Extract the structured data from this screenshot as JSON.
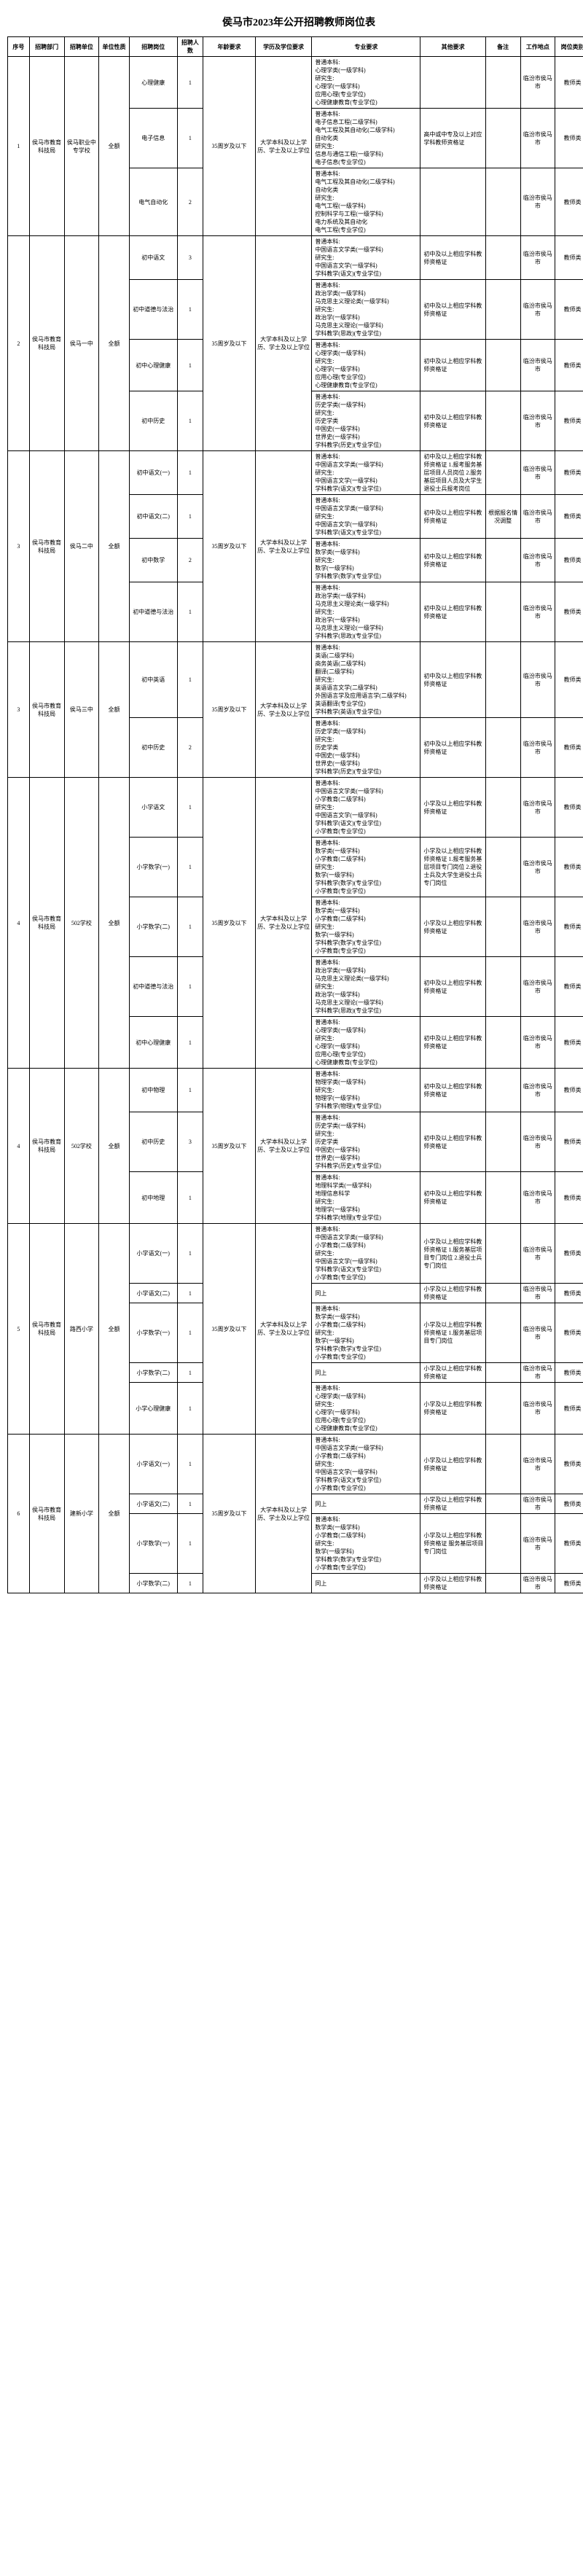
{
  "title": "侯马市2023年公开招聘教师岗位表",
  "headers": [
    "序号",
    "招聘部门",
    "招聘单位",
    "单位性质",
    "招聘岗位",
    "招聘人数",
    "年龄要求",
    "学历及学位要求",
    "专业要求",
    "其他要求",
    "备注",
    "工作地点",
    "岗位类别"
  ],
  "groups": [
    {
      "seq": "1",
      "dept": "侯马市教育科技局",
      "unit": "侯马职业中专学校",
      "nature": "全额",
      "age": "35周岁及以下",
      "edu": "大学本科及以上学历、学士及以上学位",
      "rows": [
        {
          "pos": "心理健康",
          "num": "1",
          "req": "普通本科:\n心理学类(一级学科)\n研究生:\n心理学(一级学科)\n应用心理(专业学位)\n心理健康教育(专业学位)",
          "other": "",
          "note": "",
          "loc": "临汾市侯马市",
          "cat": "教师类"
        },
        {
          "pos": "电子信息",
          "num": "1",
          "req": "普通本科:\n电子信息工程(二级学科)\n电气工程及其自动化(二级学科)\n自动化类\n研究生:\n信息与通信工程(一级学科)\n电子信息(专业学位)",
          "other": "高中或中专及以上对应学科教师资格证",
          "note": "",
          "loc": "临汾市侯马市",
          "cat": "教师类"
        },
        {
          "pos": "电气自动化",
          "num": "2",
          "req": "普通本科:\n电气工程及其自动化(二级学科)\n自动化类\n研究生:\n电气工程(一级学科)\n控制科学与工程(一级学科)\n电力系统及其自动化\n电气工程(专业学位)",
          "other": "",
          "note": "",
          "loc": "临汾市侯马市",
          "cat": "教师类"
        }
      ]
    },
    {
      "seq": "2",
      "dept": "侯马市教育科技局",
      "unit": "侯马一中",
      "nature": "全额",
      "age": "35周岁及以下",
      "edu": "大学本科及以上学历、学士及以上学位",
      "rows": [
        {
          "pos": "初中语文",
          "num": "3",
          "req": "普通本科:\n中国语言文学类(一级学科)\n研究生:\n中国语言文学(一级学科)\n学科教学(语文)(专业学位)",
          "other": "初中及以上相应学科教师资格证",
          "note": "",
          "loc": "临汾市侯马市",
          "cat": "教师类"
        },
        {
          "pos": "初中道德与法治",
          "num": "1",
          "req": "普通本科:\n政治学类(一级学科)\n马克思主义理论类(一级学科)\n研究生:\n政治学(一级学科)\n马克思主义理论(一级学科)\n学科教学(思政)(专业学位)",
          "other": "初中及以上相应学科教师资格证",
          "note": "",
          "loc": "临汾市侯马市",
          "cat": "教师类"
        },
        {
          "pos": "初中心理健康",
          "num": "1",
          "req": "普通本科:\n心理学类(一级学科)\n研究生:\n心理学(一级学科)\n应用心理(专业学位)\n心理健康教育(专业学位)",
          "other": "初中及以上相应学科教师资格证",
          "note": "",
          "loc": "临汾市侯马市",
          "cat": "教师类"
        },
        {
          "pos": "初中历史",
          "num": "1",
          "req": "普通本科:\n历史学类(一级学科)\n研究生:\n历史学类\n中国史(一级学科)\n世界史(一级学科)\n学科教学(历史)(专业学位)",
          "other": "初中及以上相应学科教师资格证",
          "note": "",
          "loc": "临汾市侯马市",
          "cat": "教师类"
        }
      ]
    },
    {
      "seq": "3",
      "dept": "侯马市教育科技局",
      "unit": "侯马二中",
      "nature": "全额",
      "age": "35周岁及以下",
      "edu": "大学本科及以上学历、学士及以上学位",
      "rows": [
        {
          "pos": "初中语文(一)",
          "num": "1",
          "req": "普通本科:\n中国语言文学类(一级学科)\n研究生:\n中国语言文学(一级学科)\n学科教学(语文)(专业学位)",
          "other": "初中及以上相应学科教师资格证 1.报考服务基层项目人员岗位 2.服务基层项目人员及大学生退役士兵报考岗位",
          "note": "",
          "loc": "临汾市侯马市",
          "cat": "教师类"
        },
        {
          "pos": "初中语文(二)",
          "num": "1",
          "req": "普通本科:\n中国语言文学类(一级学科)\n研究生:\n中国语言文学(一级学科)\n学科教学(语文)(专业学位)",
          "other": "初中及以上相应学科教师资格证",
          "note": "根据报名情况调整",
          "loc": "临汾市侯马市",
          "cat": "教师类"
        },
        {
          "pos": "初中数学",
          "num": "2",
          "req": "普通本科:\n数学类(一级学科)\n研究生:\n数学(一级学科)\n学科教学(数学)(专业学位)",
          "other": "初中及以上相应学科教师资格证",
          "note": "",
          "loc": "临汾市侯马市",
          "cat": "教师类"
        },
        {
          "pos": "初中道德与法治",
          "num": "1",
          "req": "普通本科:\n政治学类(一级学科)\n马克思主义理论类(一级学科)\n研究生:\n政治学(一级学科)\n马克思主义理论(一级学科)\n学科教学(思政)(专业学位)",
          "other": "初中及以上相应学科教师资格证",
          "note": "",
          "loc": "临汾市侯马市",
          "cat": "教师类"
        }
      ]
    },
    {
      "seq": "3",
      "dept": "侯马市教育科技局",
      "unit": "侯马三中",
      "nature": "全额",
      "age": "35周岁及以下",
      "edu": "大学本科及以上学历、学士及以上学位",
      "rows": [
        {
          "pos": "初中英语",
          "num": "1",
          "req": "普通本科:\n英语(二级学科)\n商务英语(二级学科)\n翻译(二级学科)\n研究生:\n英语语言文学(二级学科)\n外国语言学及应用语言学(二级学科)\n英语翻译(专业学位)\n学科教学(英语)(专业学位)",
          "other": "初中及以上相应学科教师资格证",
          "note": "",
          "loc": "临汾市侯马市",
          "cat": "教师类"
        },
        {
          "pos": "初中历史",
          "num": "2",
          "req": "普通本科:\n历史学类(一级学科)\n研究生:\n历史学类\n中国史(一级学科)\n世界史(一级学科)\n学科教学(历史)(专业学位)",
          "other": "初中及以上相应学科教师资格证",
          "note": "",
          "loc": "临汾市侯马市",
          "cat": "教师类"
        }
      ]
    },
    {
      "seq": "4",
      "dept": "侯马市教育科技局",
      "unit": "502学校",
      "nature": "全额",
      "age": "35周岁及以下",
      "edu": "大学本科及以上学历、学士及以上学位",
      "rows": [
        {
          "pos": "小学语文",
          "num": "1",
          "req": "普通本科:\n中国语言文学类(一级学科)\n小学教育(二级学科)\n研究生:\n中国语言文学(一级学科)\n学科教学(语文)(专业学位)\n小学教育(专业学位)",
          "other": "小学及以上相应学科教师资格证",
          "note": "",
          "loc": "临汾市侯马市",
          "cat": "教师类"
        },
        {
          "pos": "小学数学(一)",
          "num": "1",
          "req": "普通本科:\n数学类(一级学科)\n小学教育(二级学科)\n研究生:\n数学(一级学科)\n学科教学(数学)(专业学位)\n小学教育(专业学位)",
          "other": "小学及以上相应学科教师资格证 1.报考服务基层项目专门岗位 2.退役士兵及大学生退役士兵专门岗位",
          "note": "",
          "loc": "临汾市侯马市",
          "cat": "教师类"
        },
        {
          "pos": "小学数学(二)",
          "num": "1",
          "req": "普通本科:\n数学类(一级学科)\n小学教育(二级学科)\n研究生:\n数学(一级学科)\n学科教学(数学)(专业学位)\n小学教育(专业学位)",
          "other": "小学及以上相应学科教师资格证",
          "note": "",
          "loc": "临汾市侯马市",
          "cat": "教师类"
        },
        {
          "pos": "初中道德与法治",
          "num": "1",
          "req": "普通本科:\n政治学类(一级学科)\n马克思主义理论类(一级学科)\n研究生:\n政治学(一级学科)\n马克思主义理论(一级学科)\n学科教学(思政)(专业学位)",
          "other": "初中及以上相应学科教师资格证",
          "note": "",
          "loc": "临汾市侯马市",
          "cat": "教师类"
        },
        {
          "pos": "初中心理健康",
          "num": "1",
          "req": "普通本科:\n心理学类(一级学科)\n研究生:\n心理学(一级学科)\n应用心理(专业学位)\n心理健康教育(专业学位)",
          "other": "初中及以上相应学科教师资格证",
          "note": "",
          "loc": "临汾市侯马市",
          "cat": "教师类"
        }
      ]
    },
    {
      "seq": "4",
      "dept": "侯马市教育科技局",
      "unit": "502学校",
      "nature": "全额",
      "age": "35周岁及以下",
      "edu": "大学本科及以上学历、学士及以上学位",
      "rows": [
        {
          "pos": "初中物理",
          "num": "1",
          "req": "普通本科:\n物理学类(一级学科)\n研究生:\n物理学(一级学科)\n学科教学(物理)(专业学位)",
          "other": "初中及以上相应学科教师资格证",
          "note": "",
          "loc": "临汾市侯马市",
          "cat": "教师类"
        },
        {
          "pos": "初中历史",
          "num": "3",
          "req": "普通本科:\n历史学类(一级学科)\n研究生:\n历史学类\n中国史(一级学科)\n世界史(一级学科)\n学科教学(历史)(专业学位)",
          "other": "初中及以上相应学科教师资格证",
          "note": "",
          "loc": "临汾市侯马市",
          "cat": "教师类"
        },
        {
          "pos": "初中地理",
          "num": "1",
          "req": "普通本科:\n地理科学类(一级学科)\n地理信息科学\n研究生:\n地理学(一级学科)\n学科教学(地理)(专业学位)",
          "other": "初中及以上相应学科教师资格证",
          "note": "",
          "loc": "临汾市侯马市",
          "cat": "教师类"
        }
      ]
    },
    {
      "seq": "5",
      "dept": "侯马市教育科技局",
      "unit": "路西小学",
      "nature": "全额",
      "age": "35周岁及以下",
      "edu": "大学本科及以上学历、学士及以上学位",
      "rows": [
        {
          "pos": "小学语文(一)",
          "num": "1",
          "req": "普通本科:\n中国语言文学类(一级学科)\n小学教育(二级学科)\n研究生:\n中国语言文学(一级学科)\n学科教学(语文)(专业学位)\n小学教育(专业学位)",
          "other": "小学及以上相应学科教师资格证 1.服务基层项目专门岗位 2.退役士兵专门岗位",
          "note": "",
          "loc": "临汾市侯马市",
          "cat": "教师类"
        },
        {
          "pos": "小学语文(二)",
          "num": "1",
          "req": "同上",
          "other": "小学及以上相应学科教师资格证",
          "note": "",
          "loc": "临汾市侯马市",
          "cat": "教师类"
        },
        {
          "pos": "小学数学(一)",
          "num": "1",
          "req": "普通本科:\n数学类(一级学科)\n小学教育(二级学科)\n研究生:\n数学(一级学科)\n学科教学(数学)(专业学位)\n小学教育(专业学位)",
          "other": "小学及以上相应学科教师资格证 1.服务基层项目专门岗位",
          "note": "",
          "loc": "临汾市侯马市",
          "cat": "教师类"
        },
        {
          "pos": "小学数学(二)",
          "num": "1",
          "req": "同上",
          "other": "小学及以上相应学科教师资格证",
          "note": "",
          "loc": "临汾市侯马市",
          "cat": "教师类"
        },
        {
          "pos": "小学心理健康",
          "num": "1",
          "req": "普通本科:\n心理学类(一级学科)\n研究生:\n心理学(一级学科)\n应用心理(专业学位)\n心理健康教育(专业学位)",
          "other": "小学及以上相应学科教师资格证",
          "note": "",
          "loc": "临汾市侯马市",
          "cat": "教师类"
        }
      ]
    },
    {
      "seq": "6",
      "dept": "侯马市教育科技局",
      "unit": "建新小学",
      "nature": "全额",
      "age": "35周岁及以下",
      "edu": "大学本科及以上学历、学士及以上学位",
      "rows": [
        {
          "pos": "小学语文(一)",
          "num": "1",
          "req": "普通本科:\n中国语言文学类(一级学科)\n小学教育(二级学科)\n研究生:\n中国语言文学(一级学科)\n学科教学(语文)(专业学位)\n小学教育(专业学位)",
          "other": "小学及以上相应学科教师资格证",
          "note": "",
          "loc": "临汾市侯马市",
          "cat": "教师类"
        },
        {
          "pos": "小学语文(二)",
          "num": "1",
          "req": "同上",
          "other": "小学及以上相应学科教师资格证",
          "note": "",
          "loc": "临汾市侯马市",
          "cat": "教师类"
        },
        {
          "pos": "小学数学(一)",
          "num": "1",
          "req": "普通本科:\n数学类(一级学科)\n小学教育(二级学科)\n研究生:\n数学(一级学科)\n学科教学(数学)(专业学位)\n小学教育(专业学位)",
          "other": "小学及以上相应学科教师资格证 服务基层项目专门岗位",
          "note": "",
          "loc": "临汾市侯马市",
          "cat": "教师类"
        },
        {
          "pos": "小学数学(二)",
          "num": "1",
          "req": "同上",
          "other": "小学及以上相应学科教师资格证",
          "note": "",
          "loc": "临汾市侯马市",
          "cat": "教师类"
        }
      ]
    }
  ]
}
